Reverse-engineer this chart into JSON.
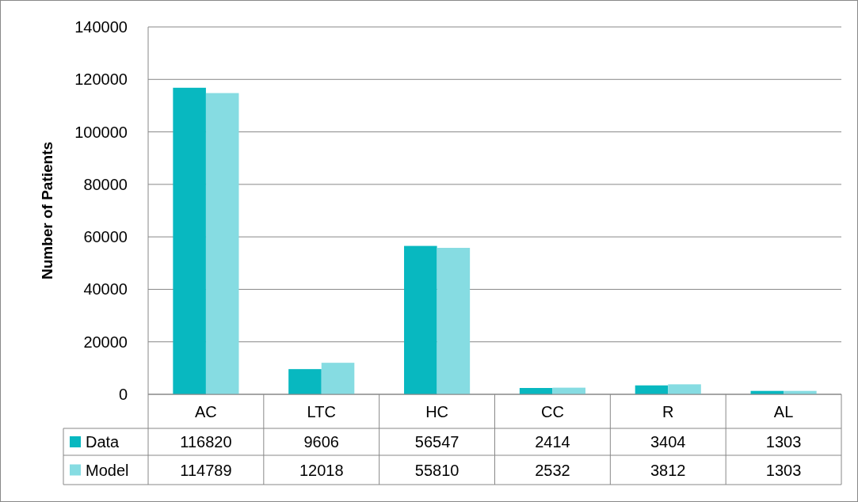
{
  "chart_data": {
    "type": "bar",
    "ylabel": "Number of Patients",
    "categories": [
      "AC",
      "LTC",
      "HC",
      "CC",
      "R",
      "AL"
    ],
    "series": [
      {
        "name": "Data",
        "color": "#08b8c0",
        "values": [
          116820,
          9606,
          56547,
          2414,
          3404,
          1303
        ]
      },
      {
        "name": "Model",
        "color": "#86dce2",
        "values": [
          114789,
          12018,
          55810,
          2532,
          3812,
          1303
        ]
      }
    ],
    "ylim": [
      0,
      140000
    ],
    "yticks": [
      0,
      20000,
      40000,
      60000,
      80000,
      100000,
      120000,
      140000
    ],
    "grid": "y",
    "data_labels": true,
    "legend": "bottom"
  }
}
